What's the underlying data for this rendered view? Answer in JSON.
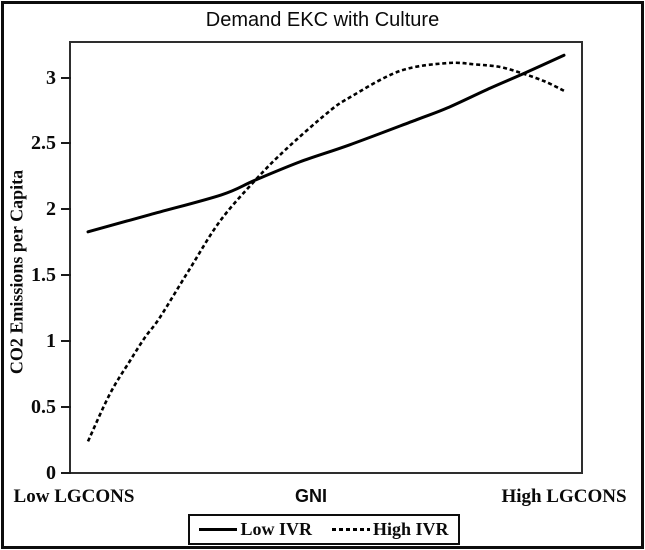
{
  "chart_data": {
    "type": "line",
    "title": "Demand EKC with Culture",
    "xlabel": "GNI",
    "ylabel": "CO2 Emissions per Capita",
    "x_axis_labels": [
      "Low LGCONS",
      "GNI",
      "High LGCONS"
    ],
    "ylim": [
      0,
      3.27
    ],
    "yticks": [
      0,
      0.5,
      1,
      1.5,
      2,
      2.5,
      3
    ],
    "ytick_labels": [
      "0",
      "0.5",
      "1",
      "1.5",
      "2",
      "2.5",
      "3"
    ],
    "grid": "off",
    "legend_position": "bottom-outside",
    "line_color": "#000000",
    "series": [
      {
        "name": "Low IVR",
        "style": "solid",
        "x": [
          0,
          0.13,
          0.28,
          0.35,
          0.445,
          0.55,
          0.69,
          0.755,
          0.845,
          0.915,
          1
        ],
        "y": [
          1.83,
          1.96,
          2.11,
          2.22,
          2.36,
          2.49,
          2.68,
          2.77,
          2.92,
          3.03,
          3.17
        ]
      },
      {
        "name": "High IVR",
        "style": "dashed",
        "x": [
          0,
          0.046,
          0.088,
          0.12,
          0.151,
          0.214,
          0.277,
          0.351,
          0.414,
          0.502,
          0.55,
          0.655,
          0.754,
          0.813,
          0.866,
          0.914,
          0.96,
          1
        ],
        "y": [
          0.24,
          0.6,
          0.85,
          1.03,
          1.18,
          1.55,
          1.91,
          2.22,
          2.45,
          2.73,
          2.85,
          3.05,
          3.11,
          3.1,
          3.08,
          3.03,
          2.97,
          2.9
        ]
      }
    ],
    "annotations": {
      "curve_crossings": [
        {
          "x_frac": 0.35,
          "value": 2.22
        },
        {
          "x_frac": 0.915,
          "value": 3.03
        }
      ],
      "high_ivr_peak": {
        "x_frac": 0.754,
        "value": 3.11
      }
    }
  }
}
